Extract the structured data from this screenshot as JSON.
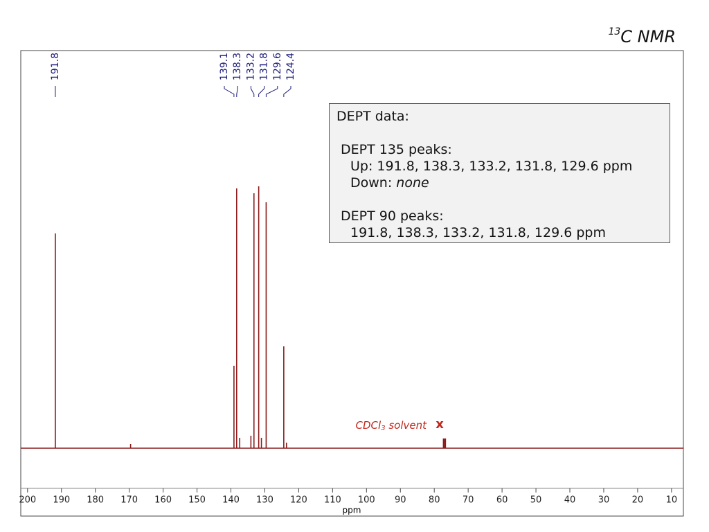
{
  "chart_data": {
    "type": "spectrum",
    "title_sup": "13",
    "title": "C NMR",
    "x_label": "ppm",
    "xlim": [
      202,
      6.5
    ],
    "xticks": [
      200,
      190,
      180,
      170,
      160,
      150,
      140,
      130,
      120,
      110,
      100,
      90,
      80,
      70,
      60,
      50,
      40,
      30,
      20,
      10
    ],
    "ylim": [
      -58,
      574
    ],
    "color": "#8b1a1a",
    "label_color": "#1a1a7a",
    "peaks": {
      "x": [
        191.8,
        139.1,
        138.3,
        133.2,
        131.8,
        129.6,
        124.4
      ],
      "values": [
        310,
        119,
        375,
        368,
        378,
        355,
        147
      ]
    },
    "minor_peaks": {
      "x": [
        169.6,
        137.4,
        134.1,
        131.0,
        123.6,
        77.3,
        77.0,
        76.7
      ],
      "values": [
        6,
        15,
        18,
        15,
        8,
        14,
        14,
        14
      ]
    },
    "solvent": {
      "text": "CDCl",
      "sub": "3",
      "suffix": " solvent",
      "marker": "x",
      "color": "#c0281e"
    },
    "annotation": {
      "heading": "DEPT data:",
      "dept135": "DEPT 135 peaks:",
      "up": "Up: 191.8, 138.3, 133.2, 131.8, 129.6 ppm",
      "down": "Down: ",
      "down_value": "none",
      "dept90": "DEPT 90 peaks:",
      "dept90_values": "191.8, 138.3, 133.2, 131.8, 129.6 ppm"
    }
  }
}
